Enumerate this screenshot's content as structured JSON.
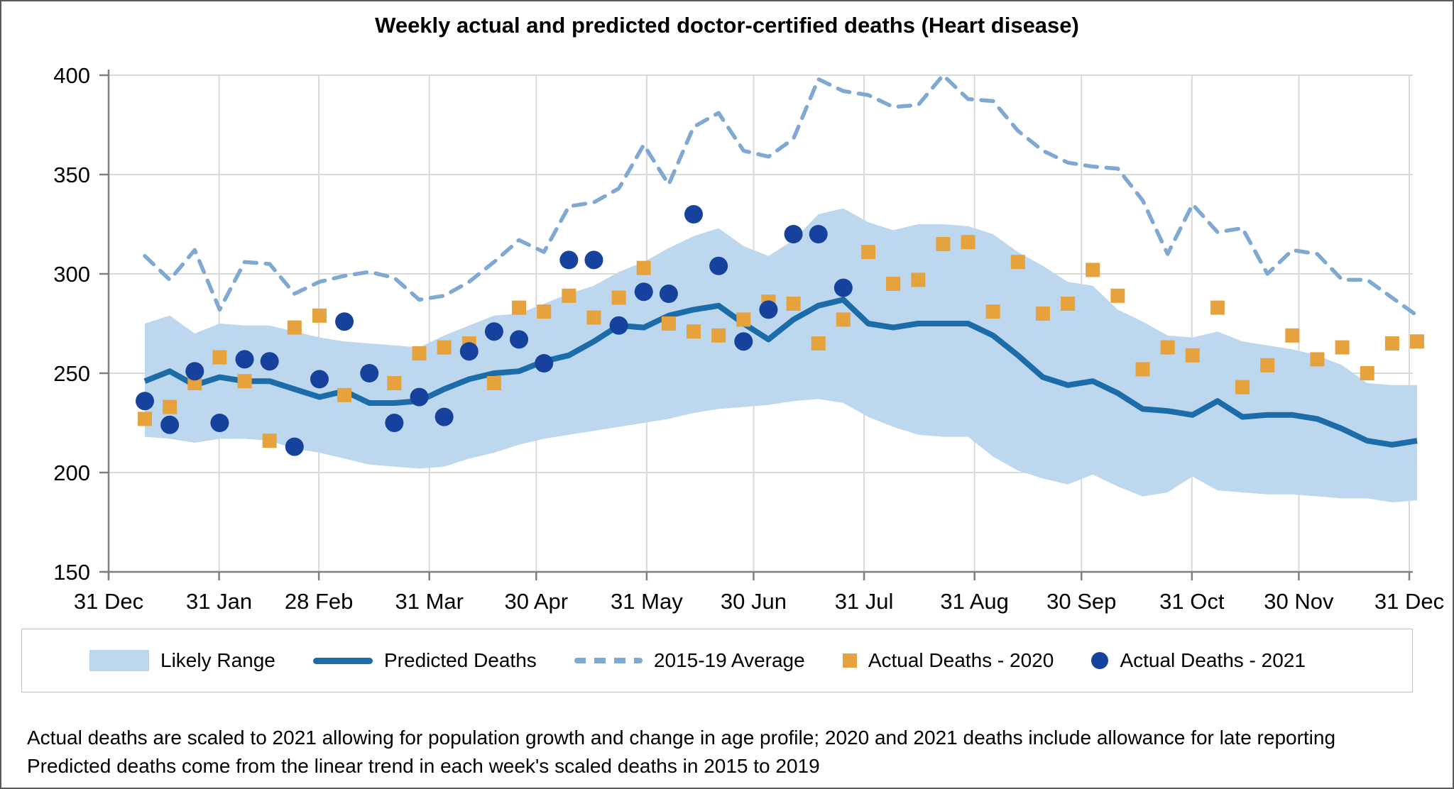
{
  "page": {
    "footnotes": [
      "Actual deaths are scaled to 2021 allowing for population growth and change in age profile; 2020 and 2021 deaths include allowance for late reporting",
      "Predicted deaths come from the linear trend in each week's scaled deaths in 2015 to 2019"
    ]
  },
  "legend": {
    "items": [
      {
        "label": "Likely Range",
        "swatch": "band"
      },
      {
        "label": "Predicted Deaths",
        "swatch": "line"
      },
      {
        "label": "2015-19 Average",
        "swatch": "dash"
      },
      {
        "label": "Actual Deaths - 2020",
        "swatch": "square"
      },
      {
        "label": "Actual Deaths - 2021",
        "swatch": "circle"
      }
    ]
  },
  "chart_data": {
    "type": "line",
    "title": "Weekly actual and predicted doctor-certified deaths (Heart disease)",
    "xlabel": "",
    "ylabel": "",
    "ylim": [
      150,
      400
    ],
    "y_ticks": [
      150,
      200,
      250,
      300,
      350,
      400
    ],
    "x_tick_labels": [
      "31 Dec",
      "31 Jan",
      "28 Feb",
      "31 Mar",
      "30 Apr",
      "31 May",
      "30 Jun",
      "31 Jul",
      "31 Aug",
      "30 Sep",
      "31 Oct",
      "30 Nov",
      "31 Dec"
    ],
    "x_tick_day_offsets": [
      0,
      31,
      59,
      90,
      120,
      151,
      181,
      212,
      243,
      273,
      304,
      334,
      365
    ],
    "grid": true,
    "legend_position": "bottom",
    "n_weeks": 52,
    "colors": {
      "band": "#BDD7EE",
      "line": "#1B6CA8",
      "dash": "#7FA8D2",
      "square": "#E6A23C",
      "circle": "#16419C"
    },
    "series": [
      {
        "name": "Likely Range (upper)",
        "values": [
          275,
          279,
          270,
          275,
          274,
          274,
          271,
          268,
          266,
          265,
          264,
          263,
          269,
          274,
          279,
          280,
          285,
          290,
          294,
          301,
          306,
          313,
          319,
          323,
          314,
          309,
          317,
          330,
          333,
          326,
          322,
          325,
          325,
          324,
          320,
          311,
          304,
          296,
          294,
          282,
          276,
          269,
          268,
          271,
          266,
          264,
          262,
          259,
          254,
          245,
          244,
          244
        ]
      },
      {
        "name": "Likely Range (lower)",
        "values": [
          218,
          217,
          215,
          217,
          217,
          216,
          212,
          210,
          207,
          204,
          203,
          202,
          203,
          207,
          210,
          214,
          217,
          219,
          221,
          223,
          225,
          227,
          230,
          232,
          233,
          234,
          236,
          237,
          235,
          228,
          223,
          219,
          218,
          218,
          208,
          201,
          197,
          194,
          199,
          193,
          188,
          190,
          198,
          191,
          190,
          189,
          189,
          188,
          187,
          187,
          185,
          186
        ]
      },
      {
        "name": "Predicted Deaths",
        "values": [
          246,
          251,
          244,
          248,
          246,
          246,
          242,
          238,
          241,
          235,
          235,
          236,
          242,
          247,
          250,
          251,
          256,
          259,
          266,
          274,
          273,
          279,
          282,
          284,
          275,
          267,
          277,
          284,
          287,
          275,
          273,
          275,
          275,
          275,
          269,
          259,
          248,
          244,
          246,
          240,
          232,
          231,
          229,
          236,
          228,
          229,
          229,
          227,
          222,
          216,
          214,
          216
        ]
      },
      {
        "name": "2015-19 Average",
        "values": [
          309,
          297,
          312,
          282,
          306,
          305,
          290,
          296,
          299,
          301,
          298,
          287,
          289,
          296,
          306,
          317,
          311,
          334,
          336,
          343,
          365,
          345,
          374,
          381,
          362,
          359,
          368,
          398,
          392,
          390,
          384,
          385,
          400,
          388,
          387,
          372,
          362,
          356,
          354,
          353,
          337,
          310,
          335,
          321,
          323,
          300,
          312,
          310,
          297,
          297,
          288,
          279
        ]
      },
      {
        "name": "Actual Deaths - 2020",
        "values": [
          227,
          233,
          245,
          258,
          246,
          216,
          273,
          279,
          239,
          250,
          245,
          260,
          263,
          265,
          245,
          283,
          281,
          289,
          278,
          288,
          303,
          275,
          271,
          269,
          277,
          286,
          285,
          265,
          277,
          311,
          295,
          297,
          315,
          316,
          281,
          306,
          280,
          285,
          302,
          289,
          252,
          263,
          259,
          283,
          243,
          254,
          269,
          257,
          263,
          250,
          265,
          266
        ]
      },
      {
        "name": "Actual Deaths - 2021",
        "values": [
          236,
          224,
          251,
          225,
          257,
          256,
          213,
          247,
          276,
          250,
          225,
          238,
          228,
          261,
          271,
          267,
          255,
          307,
          307,
          274,
          291,
          290,
          330,
          304,
          266,
          282,
          320,
          320,
          293
        ]
      }
    ]
  }
}
